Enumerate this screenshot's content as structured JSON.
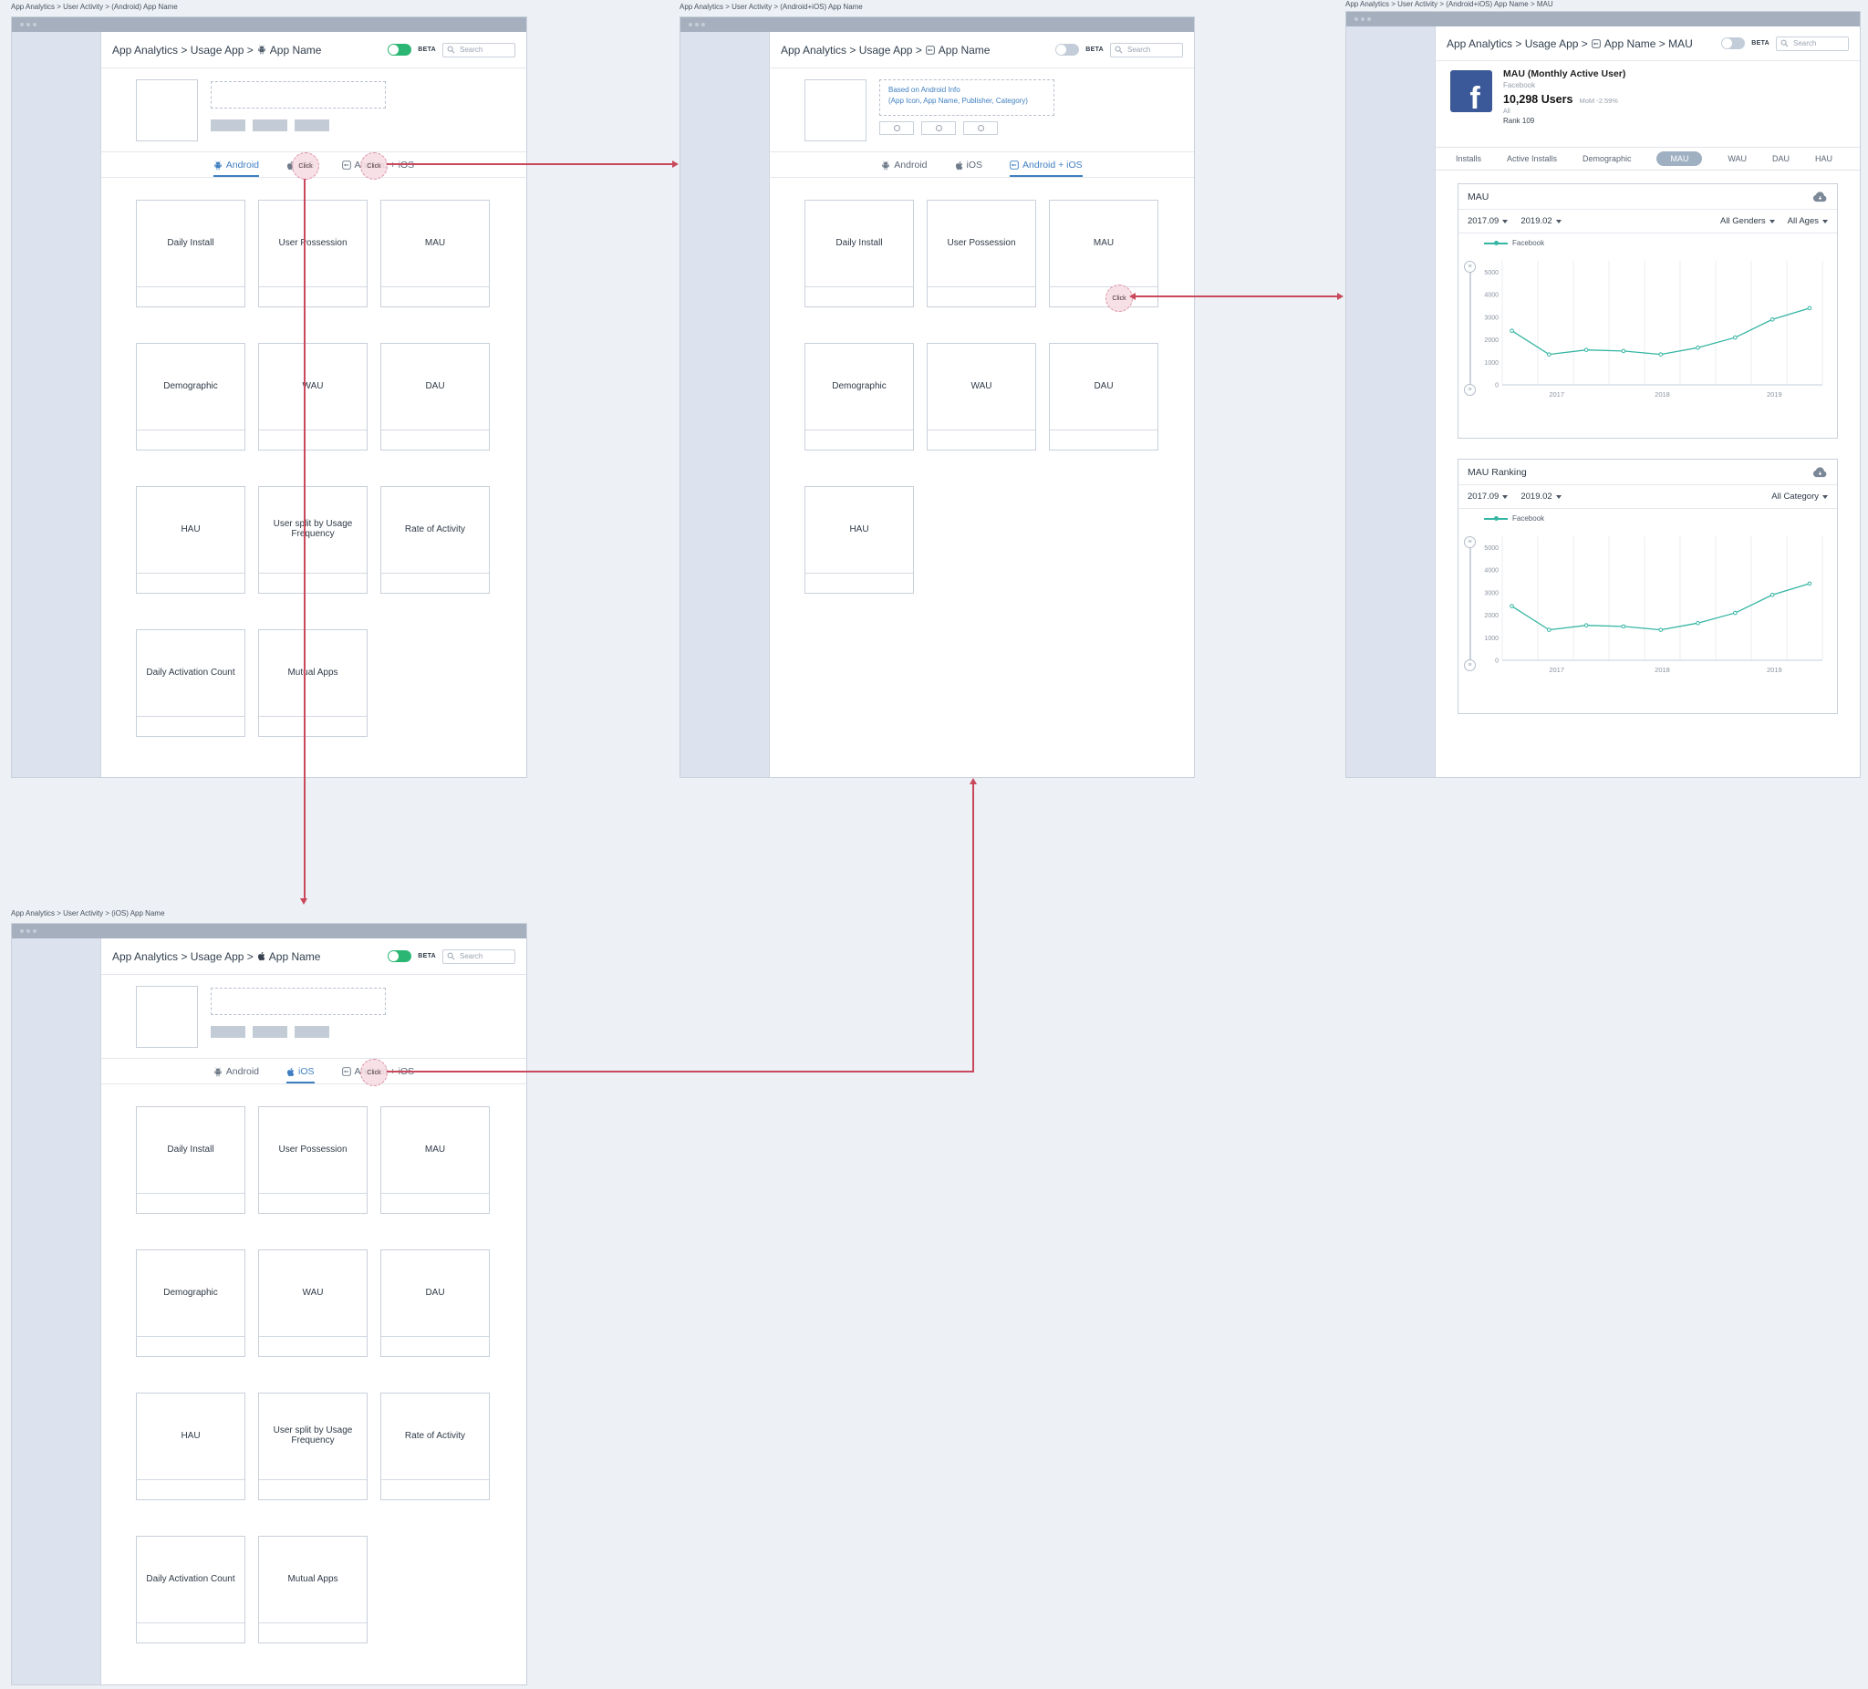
{
  "click_label": "Click",
  "windows": {
    "android": {
      "page_label": "App Analytics > User Activity > (Android) App Name",
      "breadcrumb_prefix": "App Analytics > Usage App >",
      "app_name": "App Name",
      "beta_label": "BETA",
      "search_placeholder": "Search",
      "tabs": {
        "android": "Android",
        "ios": "iOS",
        "combined": "Android + iOS"
      },
      "cards": [
        "Daily Install",
        "User Possession",
        "MAU",
        "Demographic",
        "WAU",
        "DAU",
        "HAU",
        "User split by Usage Frequency",
        "Rate of Activity",
        "Daily Activation Count",
        "Mutual Apps"
      ]
    },
    "ios": {
      "page_label": "App Analytics > User Activity > (iOS) App Name",
      "breadcrumb_prefix": "App Analytics > Usage App >",
      "app_name": "App Name",
      "beta_label": "BETA",
      "search_placeholder": "Search",
      "tabs": {
        "android": "Android",
        "ios": "iOS",
        "combined": "Android + iOS"
      },
      "cards": [
        "Daily Install",
        "User Possession",
        "MAU",
        "Demographic",
        "WAU",
        "DAU",
        "HAU",
        "User split by Usage Frequency",
        "Rate of Activity",
        "Daily Activation Count",
        "Mutual Apps"
      ]
    },
    "combined": {
      "page_label": "App Analytics > User Activity > (Android+iOS) App Name",
      "breadcrumb_prefix": "App Analytics > Usage App >",
      "app_name": "App Name",
      "beta_label": "BETA",
      "search_placeholder": "Search",
      "note_line1": "Based on Android Info",
      "note_line2": "(App Icon, App Name, Publisher, Category)",
      "tabs": {
        "android": "Android",
        "ios": "iOS",
        "combined": "Android + iOS"
      },
      "cards": [
        "Daily Install",
        "User Possession",
        "MAU",
        "Demographic",
        "WAU",
        "DAU",
        "HAU"
      ]
    },
    "mau_detail": {
      "page_label": "App Analytics > User Activity > (Android+iOS) App Name > MAU",
      "breadcrumb_prefix": "App Analytics > Usage App >",
      "app_name": "App Name > MAU",
      "beta_label": "BETA",
      "search_placeholder": "Search",
      "app_header": {
        "title": "MAU (Monthly Active User)",
        "publisher": "Facebook",
        "users": "10,298 Users",
        "mom": "MoM -2.59%",
        "scope": "All",
        "rank": "Rank 109"
      },
      "tabs": [
        "Installs",
        "Active Installs",
        "Demographic",
        "MAU",
        "WAU",
        "DAU",
        "HAU"
      ],
      "panels": [
        {
          "title": "MAU",
          "date_from": "2017.09",
          "date_to": "2019.02",
          "filters": [
            "All Genders",
            "All Ages"
          ],
          "legend": "Facebook"
        },
        {
          "title": "MAU Ranking",
          "date_from": "2017.09",
          "date_to": "2019.02",
          "filters": [
            "All Category"
          ],
          "legend": "Facebook"
        }
      ]
    }
  },
  "chart_data": [
    {
      "type": "line",
      "title": "MAU",
      "legend": "Facebook",
      "x_labels": [
        {
          "label": "2017",
          "pos": 0.17
        },
        {
          "label": "2018",
          "pos": 0.5
        },
        {
          "label": "2019",
          "pos": 0.85
        }
      ],
      "yticks": [
        0,
        1000,
        2000,
        3000,
        4000,
        5000
      ],
      "ylim": [
        0,
        5500
      ],
      "grid": "vertical",
      "legend_position": "top-left",
      "series": [
        {
          "name": "Facebook",
          "color": "#35b5a3",
          "values": [
            2400,
            1350,
            1550,
            1500,
            1350,
            1650,
            2100,
            2900,
            3400
          ]
        }
      ]
    },
    {
      "type": "line",
      "title": "MAU Ranking",
      "legend": "Facebook",
      "x_labels": [
        {
          "label": "2017",
          "pos": 0.17
        },
        {
          "label": "2018",
          "pos": 0.5
        },
        {
          "label": "2019",
          "pos": 0.85
        }
      ],
      "yticks": [
        0,
        1000,
        2000,
        3000,
        4000,
        5000
      ],
      "ylim": [
        0,
        5500
      ],
      "grid": "vertical",
      "legend_position": "top-left",
      "series": [
        {
          "name": "Facebook",
          "color": "#35b5a3",
          "values": [
            2400,
            1350,
            1550,
            1500,
            1350,
            1650,
            2100,
            2900,
            3400
          ]
        }
      ]
    }
  ]
}
